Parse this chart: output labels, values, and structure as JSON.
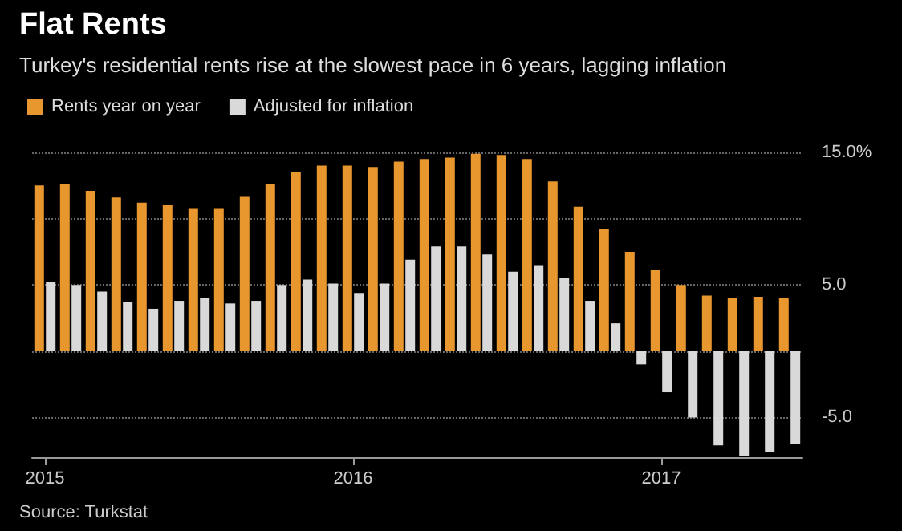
{
  "chart_data": {
    "type": "bar",
    "title": "Flat Rents",
    "subtitle": "Turkey's residential rents rise at the slowest pace in 6 years, lagging inflation",
    "categories": [
      "2015",
      null,
      null,
      null,
      null,
      null,
      null,
      null,
      null,
      null,
      null,
      null,
      "2016",
      null,
      null,
      null,
      null,
      null,
      null,
      null,
      null,
      null,
      null,
      null,
      "2017",
      null,
      null,
      null,
      null,
      null
    ],
    "series": [
      {
        "name": "Rents year on year",
        "color": "#e8962e",
        "values": [
          12.5,
          12.6,
          12.1,
          11.6,
          11.2,
          11.0,
          10.8,
          10.8,
          11.7,
          12.6,
          13.5,
          14.0,
          14.0,
          13.9,
          14.3,
          14.5,
          14.6,
          14.9,
          14.8,
          14.5,
          12.8,
          10.9,
          9.2,
          7.5,
          6.1,
          5.0,
          4.2,
          4.0,
          4.1,
          4.0
        ]
      },
      {
        "name": "Adjusted for inflation",
        "color": "#d9d9d9",
        "values": [
          5.2,
          5.0,
          4.5,
          3.7,
          3.2,
          3.8,
          4.0,
          3.6,
          3.8,
          5.0,
          5.4,
          5.1,
          4.4,
          5.1,
          6.9,
          7.9,
          7.9,
          7.3,
          6.0,
          6.5,
          5.5,
          3.8,
          2.1,
          -1.0,
          -3.1,
          -5.0,
          -7.1,
          -7.9,
          -7.6,
          -7.0
        ]
      }
    ],
    "ylim": [
      -8,
      15
    ],
    "yticks": [
      {
        "value": -5,
        "label": "-5.0"
      },
      {
        "value": 0,
        "label": null
      },
      {
        "value": 5,
        "label": "5.0"
      },
      {
        "value": 10,
        "label": null
      },
      {
        "value": 15,
        "label": "15.0%"
      }
    ],
    "grid": "y",
    "legend": "top left",
    "annotations": [
      "Source: Turkstat"
    ]
  }
}
